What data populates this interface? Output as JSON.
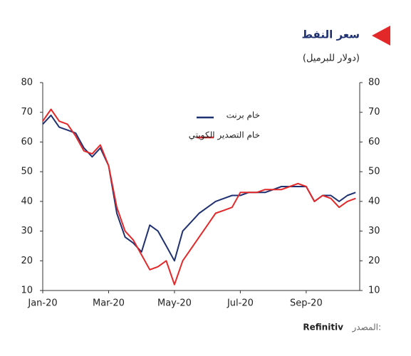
{
  "chart_data": {
    "type": "line",
    "title": "سعر النفط",
    "subtitle": "(دولار للبرميل)",
    "source_label": "المصدر:",
    "source": "Refinitiv",
    "categories": [
      "Jan-20",
      null,
      null,
      null,
      null,
      null,
      null,
      null,
      "Mar-20",
      null,
      null,
      null,
      null,
      null,
      null,
      null,
      "May-20",
      null,
      null,
      null,
      null,
      null,
      null,
      null,
      "Jul-20",
      null,
      null,
      null,
      null,
      null,
      null,
      null,
      "Sep-20",
      null,
      null,
      null,
      null,
      null,
      null
    ],
    "series": [
      {
        "name": "خام برنت",
        "color": "#1f3170",
        "values": [
          66,
          69,
          65,
          64,
          63,
          58,
          55,
          58,
          52,
          36,
          28,
          26,
          23,
          32,
          30,
          25,
          20,
          30,
          33,
          36,
          38,
          40,
          41,
          42,
          42,
          43,
          43,
          43,
          44,
          45,
          45,
          45,
          45,
          40,
          42,
          42,
          40,
          42,
          43
        ]
      },
      {
        "name": "خام التصدير الكويتي",
        "color": "#e3282a",
        "values": [
          67,
          71,
          67,
          66,
          62,
          57,
          56,
          59,
          52,
          38,
          30,
          27,
          22,
          17,
          18,
          20,
          12,
          20,
          24,
          28,
          32,
          36,
          37,
          38,
          43,
          43,
          43,
          44,
          44,
          44,
          45,
          46,
          45,
          40,
          42,
          41,
          38,
          40,
          41
        ]
      }
    ],
    "ylim": [
      10,
      80
    ],
    "yticks": [
      10,
      20,
      30,
      40,
      50,
      60,
      70,
      80
    ],
    "y2lim": [
      10,
      80
    ],
    "y2ticks": [
      10,
      20,
      30,
      40,
      50,
      60,
      70,
      80
    ],
    "legend": "upper center"
  }
}
